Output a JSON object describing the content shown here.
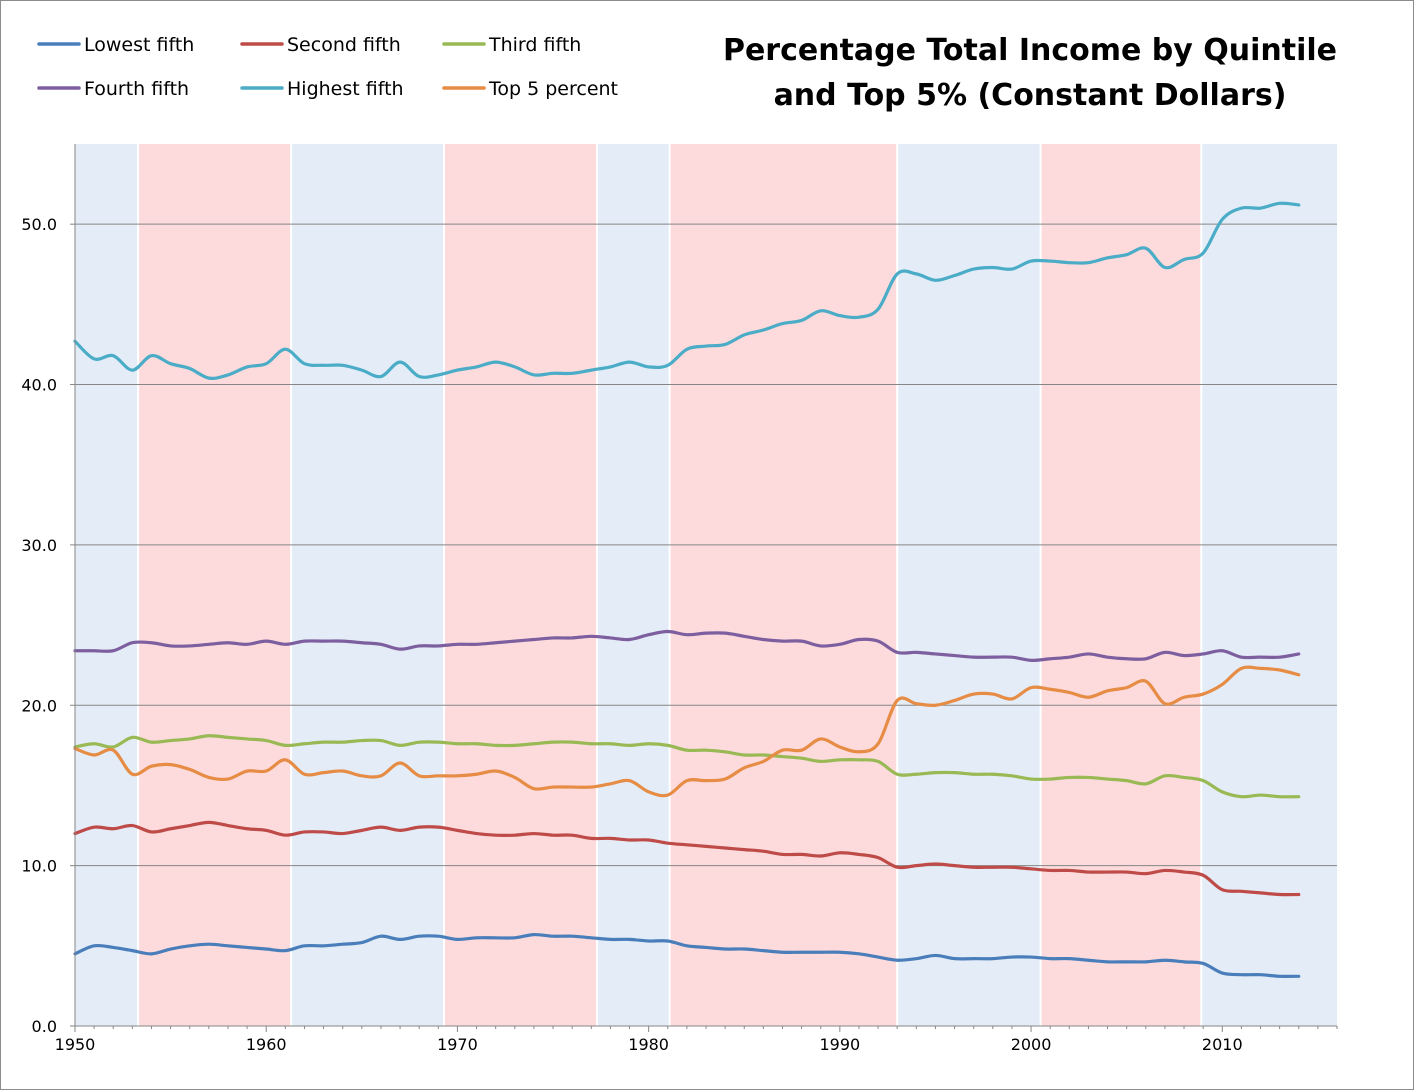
{
  "chart_data": {
    "type": "line",
    "title_lines": [
      "Percentage Total Income by Quintile",
      "and Top 5% (Constant Dollars)"
    ],
    "xlabel": "",
    "ylabel": "",
    "xlim": [
      1950,
      2016
    ],
    "ylim": [
      0,
      55
    ],
    "x_ticks": [
      1950,
      1960,
      1970,
      1980,
      1990,
      2000,
      2010
    ],
    "y_ticks": [
      0,
      10,
      20,
      30,
      40,
      50
    ],
    "y_tick_labels": [
      "0.0",
      "10.0",
      "20.0",
      "30.0",
      "40.0",
      "50.0"
    ],
    "grid": "horizontal",
    "legend_position": "top-left",
    "shaded_periods": [
      {
        "start": 1950,
        "end": 1953.3,
        "color": "#e4edf7"
      },
      {
        "start": 1953.3,
        "end": 1961.3,
        "color": "#fddbdc"
      },
      {
        "start": 1961.3,
        "end": 1969.3,
        "color": "#e4edf7"
      },
      {
        "start": 1969.3,
        "end": 1977.3,
        "color": "#fddbdc"
      },
      {
        "start": 1977.3,
        "end": 1981.1,
        "color": "#e4edf7"
      },
      {
        "start": 1981.1,
        "end": 1993.0,
        "color": "#fddbdc"
      },
      {
        "start": 1993.0,
        "end": 2000.5,
        "color": "#e4edf7"
      },
      {
        "start": 2000.5,
        "end": 2008.9,
        "color": "#fddbdc"
      },
      {
        "start": 2008.9,
        "end": 2016,
        "color": "#e4edf7"
      }
    ],
    "x": [
      1950,
      1951,
      1952,
      1953,
      1954,
      1955,
      1956,
      1957,
      1958,
      1959,
      1960,
      1961,
      1962,
      1963,
      1964,
      1965,
      1966,
      1967,
      1968,
      1969,
      1970,
      1971,
      1972,
      1973,
      1974,
      1975,
      1976,
      1977,
      1978,
      1979,
      1980,
      1981,
      1982,
      1983,
      1984,
      1985,
      1986,
      1987,
      1988,
      1989,
      1990,
      1991,
      1992,
      1993,
      1994,
      1995,
      1996,
      1997,
      1998,
      1999,
      2000,
      2001,
      2002,
      2003,
      2004,
      2005,
      2006,
      2007,
      2008,
      2009,
      2010,
      2011,
      2012,
      2013,
      2014
    ],
    "series": [
      {
        "name": "Lowest fifth",
        "color": "#4a7ebb",
        "values": [
          4.5,
          5.0,
          4.9,
          4.7,
          4.5,
          4.8,
          5.0,
          5.1,
          5.0,
          4.9,
          4.8,
          4.7,
          5.0,
          5.0,
          5.1,
          5.2,
          5.6,
          5.4,
          5.6,
          5.6,
          5.4,
          5.5,
          5.5,
          5.5,
          5.7,
          5.6,
          5.6,
          5.5,
          5.4,
          5.4,
          5.3,
          5.3,
          5.0,
          4.9,
          4.8,
          4.8,
          4.7,
          4.6,
          4.6,
          4.6,
          4.6,
          4.5,
          4.3,
          4.1,
          4.2,
          4.4,
          4.2,
          4.2,
          4.2,
          4.3,
          4.3,
          4.2,
          4.2,
          4.1,
          4.0,
          4.0,
          4.0,
          4.1,
          4.0,
          3.9,
          3.3,
          3.2,
          3.2,
          3.1,
          3.1
        ]
      },
      {
        "name": "Second fifth",
        "color": "#be4b48",
        "values": [
          12.0,
          12.4,
          12.3,
          12.5,
          12.1,
          12.3,
          12.5,
          12.7,
          12.5,
          12.3,
          12.2,
          11.9,
          12.1,
          12.1,
          12.0,
          12.2,
          12.4,
          12.2,
          12.4,
          12.4,
          12.2,
          12.0,
          11.9,
          11.9,
          12.0,
          11.9,
          11.9,
          11.7,
          11.7,
          11.6,
          11.6,
          11.4,
          11.3,
          11.2,
          11.1,
          11.0,
          10.9,
          10.7,
          10.7,
          10.6,
          10.8,
          10.7,
          10.5,
          9.9,
          10.0,
          10.1,
          10.0,
          9.9,
          9.9,
          9.9,
          9.8,
          9.7,
          9.7,
          9.6,
          9.6,
          9.6,
          9.5,
          9.7,
          9.6,
          9.4,
          8.5,
          8.4,
          8.3,
          8.2,
          8.2
        ]
      },
      {
        "name": "Third fifth",
        "color": "#98b954",
        "values": [
          17.4,
          17.6,
          17.4,
          18.0,
          17.7,
          17.8,
          17.9,
          18.1,
          18.0,
          17.9,
          17.8,
          17.5,
          17.6,
          17.7,
          17.7,
          17.8,
          17.8,
          17.5,
          17.7,
          17.7,
          17.6,
          17.6,
          17.5,
          17.5,
          17.6,
          17.7,
          17.7,
          17.6,
          17.6,
          17.5,
          17.6,
          17.5,
          17.2,
          17.2,
          17.1,
          16.9,
          16.9,
          16.8,
          16.7,
          16.5,
          16.6,
          16.6,
          16.5,
          15.7,
          15.7,
          15.8,
          15.8,
          15.7,
          15.7,
          15.6,
          15.4,
          15.4,
          15.5,
          15.5,
          15.4,
          15.3,
          15.1,
          15.6,
          15.5,
          15.3,
          14.6,
          14.3,
          14.4,
          14.3,
          14.3
        ]
      },
      {
        "name": "Fourth fifth",
        "color": "#7d5fa0",
        "values": [
          23.4,
          23.4,
          23.4,
          23.9,
          23.9,
          23.7,
          23.7,
          23.8,
          23.9,
          23.8,
          24.0,
          23.8,
          24.0,
          24.0,
          24.0,
          23.9,
          23.8,
          23.5,
          23.7,
          23.7,
          23.8,
          23.8,
          23.9,
          24.0,
          24.1,
          24.2,
          24.2,
          24.3,
          24.2,
          24.1,
          24.4,
          24.6,
          24.4,
          24.5,
          24.5,
          24.3,
          24.1,
          24.0,
          24.0,
          23.7,
          23.8,
          24.1,
          24.0,
          23.3,
          23.3,
          23.2,
          23.1,
          23.0,
          23.0,
          23.0,
          22.8,
          22.9,
          23.0,
          23.2,
          23.0,
          22.9,
          22.9,
          23.3,
          23.1,
          23.2,
          23.4,
          23.0,
          23.0,
          23.0,
          23.2
        ]
      },
      {
        "name": "Highest fifth",
        "color": "#4aacc6",
        "values": [
          42.7,
          41.6,
          41.8,
          40.9,
          41.8,
          41.3,
          41.0,
          40.4,
          40.6,
          41.1,
          41.3,
          42.2,
          41.3,
          41.2,
          41.2,
          40.9,
          40.5,
          41.4,
          40.5,
          40.6,
          40.9,
          41.1,
          41.4,
          41.1,
          40.6,
          40.7,
          40.7,
          40.9,
          41.1,
          41.4,
          41.1,
          41.2,
          42.2,
          42.4,
          42.5,
          43.1,
          43.4,
          43.8,
          44.0,
          44.6,
          44.3,
          44.2,
          44.7,
          46.9,
          46.9,
          46.5,
          46.8,
          47.2,
          47.3,
          47.2,
          47.7,
          47.7,
          47.6,
          47.6,
          47.9,
          48.1,
          48.5,
          47.3,
          47.8,
          48.2,
          50.3,
          51.0,
          51.0,
          51.3,
          51.2
        ]
      },
      {
        "name": "Top 5 percent",
        "color": "#e68c45",
        "values": [
          17.3,
          16.9,
          17.2,
          15.7,
          16.2,
          16.3,
          16.0,
          15.5,
          15.4,
          15.9,
          15.9,
          16.6,
          15.7,
          15.8,
          15.9,
          15.6,
          15.6,
          16.4,
          15.6,
          15.6,
          15.6,
          15.7,
          15.9,
          15.5,
          14.8,
          14.9,
          14.9,
          14.9,
          15.1,
          15.3,
          14.6,
          14.4,
          15.3,
          15.3,
          15.4,
          16.1,
          16.5,
          17.2,
          17.2,
          17.9,
          17.4,
          17.1,
          17.6,
          20.3,
          20.1,
          20.0,
          20.3,
          20.7,
          20.7,
          20.4,
          21.1,
          21.0,
          20.8,
          20.5,
          20.9,
          21.1,
          21.5,
          20.1,
          20.5,
          20.7,
          21.3,
          22.3,
          22.3,
          22.2,
          21.9
        ]
      }
    ]
  }
}
